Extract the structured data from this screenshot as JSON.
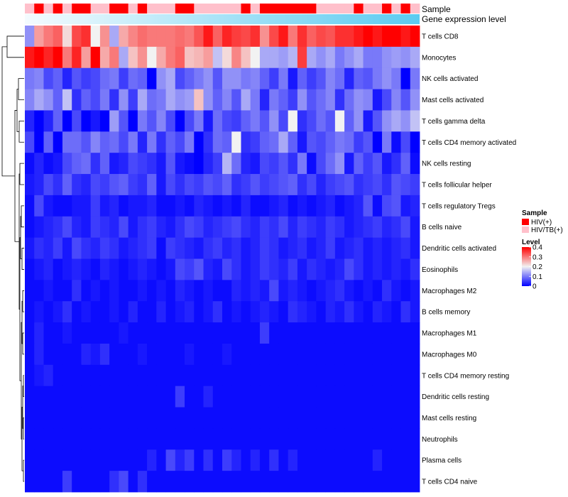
{
  "chart_data": {
    "type": "heatmap",
    "title": "",
    "columns": 42,
    "annotations": {
      "sample_label": "Sample",
      "gene_expression_label": "Gene expression level",
      "sample_groups": [
        "T",
        "H",
        "T",
        "H",
        "T",
        "H",
        "H",
        "T",
        "T",
        "H",
        "H",
        "T",
        "H",
        "T",
        "T",
        "T",
        "H",
        "H",
        "T",
        "T",
        "T",
        "T",
        "T",
        "H",
        "T",
        "H",
        "H",
        "H",
        "H",
        "H",
        "H",
        "T",
        "T",
        "T",
        "T",
        "H",
        "T",
        "T",
        "H",
        "T",
        "H",
        "T"
      ]
    },
    "rows": [
      "T cells CD8",
      "Monocytes",
      "NK cells activated",
      "Mast cells activated",
      "T cells gamma delta",
      "T cells CD4 memory activated",
      "NK cells resting",
      "T cells follicular helper",
      "T cells regulatory  Tregs",
      "B cells naive",
      "Dendritic cells activated",
      "Eosinophils",
      "Macrophages M2",
      "B cells memory",
      "Macrophages M1",
      "Macrophages M0",
      "T cells CD4 memory resting",
      "Dendritic cells resting",
      "Mast cells resting",
      "Neutrophils",
      "Plasma cells",
      "T cells CD4 naive"
    ],
    "values": [
      [
        0.12,
        0.27,
        0.3,
        0.32,
        0.22,
        0.34,
        0.36,
        0.2,
        0.28,
        0.14,
        0.26,
        0.29,
        0.31,
        0.3,
        0.3,
        0.3,
        0.31,
        0.3,
        0.33,
        0.38,
        0.32,
        0.37,
        0.35,
        0.34,
        0.36,
        0.28,
        0.34,
        0.38,
        0.3,
        0.36,
        0.32,
        0.34,
        0.33,
        0.36,
        0.36,
        0.38,
        0.4,
        0.38,
        0.4,
        0.4,
        0.38,
        0.4
      ],
      [
        0.38,
        0.4,
        0.37,
        0.4,
        0.3,
        0.37,
        0.27,
        0.4,
        0.26,
        0.3,
        0.14,
        0.24,
        0.28,
        0.2,
        0.26,
        0.3,
        0.32,
        0.24,
        0.25,
        0.27,
        0.16,
        0.22,
        0.29,
        0.24,
        0.2,
        0.14,
        0.14,
        0.13,
        0.15,
        0.35,
        0.14,
        0.12,
        0.14,
        0.1,
        0.12,
        0.14,
        0.1,
        0.1,
        0.12,
        0.13,
        0.12,
        0.14
      ],
      [
        0.1,
        0.11,
        0.06,
        0.08,
        0.03,
        0.07,
        0.05,
        0.06,
        0.09,
        0.1,
        0.05,
        0.09,
        0.08,
        0.0,
        0.12,
        0.14,
        0.06,
        0.08,
        0.1,
        0.12,
        0.07,
        0.12,
        0.12,
        0.1,
        0.11,
        0.08,
        0.05,
        0.1,
        0.02,
        0.08,
        0.05,
        0.07,
        0.11,
        0.09,
        0.03,
        0.08,
        0.07,
        0.1,
        0.12,
        0.1,
        0.0,
        0.1
      ],
      [
        0.11,
        0.14,
        0.12,
        0.08,
        0.16,
        0.04,
        0.08,
        0.06,
        0.1,
        0.04,
        0.12,
        0.05,
        0.14,
        0.09,
        0.1,
        0.14,
        0.12,
        0.13,
        0.24,
        0.12,
        0.08,
        0.11,
        0.07,
        0.14,
        0.1,
        0.03,
        0.1,
        0.08,
        0.05,
        0.12,
        0.07,
        0.09,
        0.11,
        0.04,
        0.09,
        0.12,
        0.11,
        0.02,
        0.06,
        0.11,
        0.07,
        0.12
      ],
      [
        0.03,
        0.0,
        0.03,
        0.08,
        0.0,
        0.06,
        0.0,
        0.02,
        0.0,
        0.13,
        0.07,
        0.0,
        0.1,
        0.07,
        0.11,
        0.06,
        0.0,
        0.06,
        0.1,
        0.02,
        0.09,
        0.06,
        0.05,
        0.08,
        0.1,
        0.07,
        0.12,
        0.06,
        0.2,
        0.04,
        0.06,
        0.09,
        0.07,
        0.2,
        0.08,
        0.12,
        0.02,
        0.07,
        0.12,
        0.14,
        0.12,
        0.16
      ],
      [
        0.06,
        0.0,
        0.08,
        0.0,
        0.09,
        0.09,
        0.07,
        0.11,
        0.08,
        0.09,
        0.06,
        0.1,
        0.03,
        0.1,
        0.04,
        0.08,
        0.06,
        0.1,
        0.0,
        0.04,
        0.09,
        0.08,
        0.2,
        0.04,
        0.05,
        0.08,
        0.09,
        0.14,
        0.08,
        0.02,
        0.07,
        0.06,
        0.08,
        0.1,
        0.09,
        0.05,
        0.07,
        0.0,
        0.1,
        0.01,
        0.06,
        0.0
      ],
      [
        0.01,
        0.03,
        0.01,
        0.02,
        0.06,
        0.08,
        0.09,
        0.04,
        0.08,
        0.02,
        0.03,
        0.06,
        0.05,
        0.04,
        0.02,
        0.07,
        0.02,
        0.01,
        0.0,
        0.03,
        0.05,
        0.15,
        0.09,
        0.03,
        0.02,
        0.06,
        0.05,
        0.07,
        0.04,
        0.1,
        0.01,
        0.06,
        0.09,
        0.12,
        0.02,
        0.08,
        0.05,
        0.07,
        0.02,
        0.04,
        0.08,
        0.01
      ],
      [
        0.02,
        0.03,
        0.06,
        0.04,
        0.08,
        0.04,
        0.03,
        0.06,
        0.05,
        0.07,
        0.08,
        0.05,
        0.04,
        0.08,
        0.02,
        0.06,
        0.04,
        0.06,
        0.05,
        0.07,
        0.06,
        0.08,
        0.04,
        0.05,
        0.07,
        0.05,
        0.06,
        0.07,
        0.08,
        0.04,
        0.06,
        0.03,
        0.05,
        0.06,
        0.07,
        0.04,
        0.05,
        0.06,
        0.04,
        0.07,
        0.06,
        0.05
      ],
      [
        0.01,
        0.06,
        0.02,
        0.01,
        0.01,
        0.02,
        0.02,
        0.05,
        0.02,
        0.03,
        0.01,
        0.02,
        0.02,
        0.03,
        0.01,
        0.01,
        0.02,
        0.01,
        0.03,
        0.02,
        0.01,
        0.02,
        0.01,
        0.03,
        0.01,
        0.01,
        0.02,
        0.03,
        0.01,
        0.02,
        0.01,
        0.02,
        0.03,
        0.01,
        0.02,
        0.03,
        0.07,
        0.01,
        0.06,
        0.07,
        0.02,
        0.03
      ],
      [
        0.01,
        0.02,
        0.03,
        0.04,
        0.06,
        0.03,
        0.02,
        0.05,
        0.04,
        0.03,
        0.06,
        0.02,
        0.04,
        0.05,
        0.03,
        0.02,
        0.04,
        0.06,
        0.05,
        0.03,
        0.04,
        0.05,
        0.06,
        0.04,
        0.03,
        0.05,
        0.04,
        0.06,
        0.03,
        0.05,
        0.04,
        0.03,
        0.05,
        0.04,
        0.02,
        0.03,
        0.04,
        0.05,
        0.03,
        0.04,
        0.06,
        0.02
      ],
      [
        0.02,
        0.04,
        0.03,
        0.05,
        0.02,
        0.06,
        0.04,
        0.03,
        0.05,
        0.04,
        0.02,
        0.03,
        0.04,
        0.05,
        0.01,
        0.05,
        0.04,
        0.03,
        0.02,
        0.04,
        0.05,
        0.03,
        0.04,
        0.02,
        0.03,
        0.05,
        0.04,
        0.02,
        0.03,
        0.04,
        0.02,
        0.03,
        0.05,
        0.02,
        0.03,
        0.04,
        0.02,
        0.03,
        0.02,
        0.03,
        0.04,
        0.02
      ],
      [
        0.01,
        0.02,
        0.03,
        0.01,
        0.02,
        0.03,
        0.02,
        0.01,
        0.03,
        0.02,
        0.01,
        0.02,
        0.03,
        0.02,
        0.01,
        0.02,
        0.06,
        0.05,
        0.07,
        0.03,
        0.02,
        0.06,
        0.04,
        0.02,
        0.03,
        0.05,
        0.04,
        0.03,
        0.05,
        0.02,
        0.04,
        0.03,
        0.02,
        0.03,
        0.06,
        0.04,
        0.02,
        0.03,
        0.02,
        0.03,
        0.02,
        0.04
      ],
      [
        0.01,
        0.01,
        0.02,
        0.01,
        0.01,
        0.04,
        0.01,
        0.02,
        0.01,
        0.02,
        0.01,
        0.01,
        0.02,
        0.01,
        0.02,
        0.01,
        0.03,
        0.02,
        0.01,
        0.02,
        0.01,
        0.01,
        0.03,
        0.02,
        0.03,
        0.02,
        0.06,
        0.02,
        0.03,
        0.02,
        0.01,
        0.02,
        0.03,
        0.04,
        0.02,
        0.01,
        0.02,
        0.01,
        0.04,
        0.02,
        0.01,
        0.02
      ],
      [
        0.01,
        0.02,
        0.01,
        0.02,
        0.04,
        0.01,
        0.02,
        0.01,
        0.01,
        0.02,
        0.01,
        0.03,
        0.01,
        0.01,
        0.03,
        0.01,
        0.02,
        0.03,
        0.01,
        0.02,
        0.04,
        0.01,
        0.02,
        0.01,
        0.02,
        0.03,
        0.02,
        0.01,
        0.04,
        0.03,
        0.02,
        0.01,
        0.03,
        0.02,
        0.04,
        0.02,
        0.01,
        0.03,
        0.02,
        0.01,
        0.04,
        0.02
      ],
      [
        0.01,
        0.03,
        0.01,
        0.01,
        0.02,
        0.01,
        0.01,
        0.01,
        0.01,
        0.01,
        0.02,
        0.01,
        0.01,
        0.01,
        0.01,
        0.01,
        0.01,
        0.01,
        0.01,
        0.01,
        0.01,
        0.01,
        0.01,
        0.01,
        0.01,
        0.05,
        0.01,
        0.01,
        0.01,
        0.01,
        0.01,
        0.01,
        0.01,
        0.01,
        0.01,
        0.01,
        0.01,
        0.01,
        0.01,
        0.01,
        0.01,
        0.01
      ],
      [
        0.01,
        0.03,
        0.01,
        0.01,
        0.01,
        0.01,
        0.03,
        0.02,
        0.04,
        0.01,
        0.01,
        0.01,
        0.02,
        0.01,
        0.01,
        0.01,
        0.01,
        0.02,
        0.01,
        0.01,
        0.01,
        0.02,
        0.01,
        0.01,
        0.01,
        0.01,
        0.01,
        0.01,
        0.01,
        0.01,
        0.01,
        0.01,
        0.01,
        0.01,
        0.01,
        0.01,
        0.01,
        0.01,
        0.01,
        0.01,
        0.01,
        0.01
      ],
      [
        0.01,
        0.02,
        0.03,
        0.01,
        0.01,
        0.01,
        0.01,
        0.01,
        0.01,
        0.01,
        0.01,
        0.01,
        0.01,
        0.01,
        0.01,
        0.01,
        0.01,
        0.01,
        0.01,
        0.01,
        0.01,
        0.01,
        0.01,
        0.01,
        0.01,
        0.01,
        0.01,
        0.01,
        0.01,
        0.01,
        0.01,
        0.01,
        0.01,
        0.01,
        0.01,
        0.01,
        0.01,
        0.01,
        0.01,
        0.01,
        0.01,
        0.01
      ],
      [
        0.01,
        0.01,
        0.01,
        0.01,
        0.01,
        0.01,
        0.01,
        0.01,
        0.01,
        0.01,
        0.01,
        0.01,
        0.01,
        0.01,
        0.01,
        0.01,
        0.05,
        0.01,
        0.01,
        0.03,
        0.01,
        0.01,
        0.01,
        0.01,
        0.01,
        0.01,
        0.01,
        0.01,
        0.01,
        0.01,
        0.01,
        0.01,
        0.01,
        0.01,
        0.01,
        0.01,
        0.01,
        0.01,
        0.01,
        0.01,
        0.01,
        0.01
      ],
      [
        0.01,
        0.01,
        0.01,
        0.01,
        0.01,
        0.01,
        0.01,
        0.01,
        0.01,
        0.01,
        0.01,
        0.01,
        0.01,
        0.01,
        0.01,
        0.01,
        0.01,
        0.01,
        0.01,
        0.01,
        0.01,
        0.01,
        0.01,
        0.01,
        0.01,
        0.01,
        0.01,
        0.01,
        0.01,
        0.01,
        0.01,
        0.01,
        0.01,
        0.01,
        0.01,
        0.01,
        0.01,
        0.01,
        0.01,
        0.01,
        0.01,
        0.01
      ],
      [
        0.01,
        0.01,
        0.01,
        0.01,
        0.01,
        0.01,
        0.01,
        0.01,
        0.01,
        0.01,
        0.01,
        0.01,
        0.01,
        0.01,
        0.01,
        0.01,
        0.01,
        0.01,
        0.01,
        0.01,
        0.01,
        0.01,
        0.01,
        0.01,
        0.01,
        0.01,
        0.01,
        0.01,
        0.01,
        0.01,
        0.01,
        0.01,
        0.01,
        0.01,
        0.01,
        0.01,
        0.01,
        0.01,
        0.01,
        0.01,
        0.01,
        0.01
      ],
      [
        0.01,
        0.01,
        0.01,
        0.01,
        0.01,
        0.01,
        0.01,
        0.01,
        0.01,
        0.01,
        0.01,
        0.01,
        0.01,
        0.03,
        0.01,
        0.06,
        0.03,
        0.05,
        0.01,
        0.04,
        0.01,
        0.05,
        0.03,
        0.01,
        0.03,
        0.01,
        0.04,
        0.01,
        0.03,
        0.01,
        0.01,
        0.01,
        0.01,
        0.01,
        0.01,
        0.01,
        0.01,
        0.03,
        0.01,
        0.01,
        0.01,
        0.01
      ],
      [
        0.01,
        0.01,
        0.01,
        0.01,
        0.05,
        0.01,
        0.01,
        0.01,
        0.01,
        0.04,
        0.06,
        0.01,
        0.04,
        0.01,
        0.01,
        0.01,
        0.01,
        0.01,
        0.01,
        0.01,
        0.01,
        0.01,
        0.01,
        0.01,
        0.01,
        0.01,
        0.01,
        0.01,
        0.01,
        0.01,
        0.01,
        0.01,
        0.01,
        0.01,
        0.01,
        0.01,
        0.01,
        0.01,
        0.01,
        0.01,
        0.01,
        0.01
      ]
    ],
    "legend": {
      "sample_title": "Sample",
      "sample_items": [
        {
          "key": "H",
          "label": "HIV(+)",
          "color": "#ff0000"
        },
        {
          "key": "T",
          "label": "HIV/TB(+)",
          "color": "#ffc0cb"
        }
      ],
      "level_title": "Level",
      "level_ticks": [
        "0.4",
        "0.3",
        "0.2",
        "0.1",
        "0"
      ],
      "level_range": [
        0,
        0.4
      ]
    },
    "colors": {
      "low": "#0000ff",
      "mid": "#f2f2f2",
      "high": "#ff0000",
      "gene_expression_start": "#f4fbfe",
      "gene_expression_end": "#5bcbf0",
      "dendrogram": "#000000"
    },
    "color_midpoint": 0.2
  }
}
